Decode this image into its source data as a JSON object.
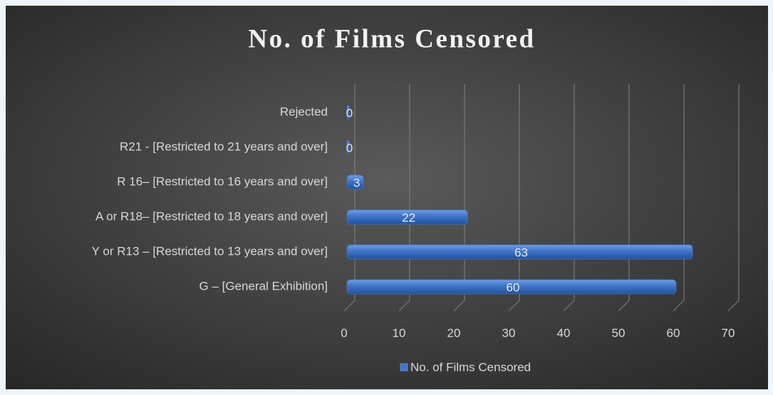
{
  "chart_data": {
    "type": "bar",
    "orientation": "horizontal",
    "title": "No. of Films Censored",
    "categories": [
      "Rejected",
      "R21 - [Restricted to 21 years and over]",
      "R 16– [Restricted to 16 years and over]",
      "A or R18– [Restricted to 18 years and over]",
      "Y or R13 – [Restricted to 13 years and over]",
      "G – [General Exhibition]"
    ],
    "series": [
      {
        "name": "No. of Films Censored",
        "color": "#3f74c8",
        "values": [
          0,
          0,
          3,
          22,
          63,
          60
        ]
      }
    ],
    "xlim": [
      0,
      70
    ],
    "xticks": [
      0,
      10,
      20,
      30,
      40,
      50,
      60,
      70
    ],
    "grid": true,
    "legend": "bottom"
  }
}
